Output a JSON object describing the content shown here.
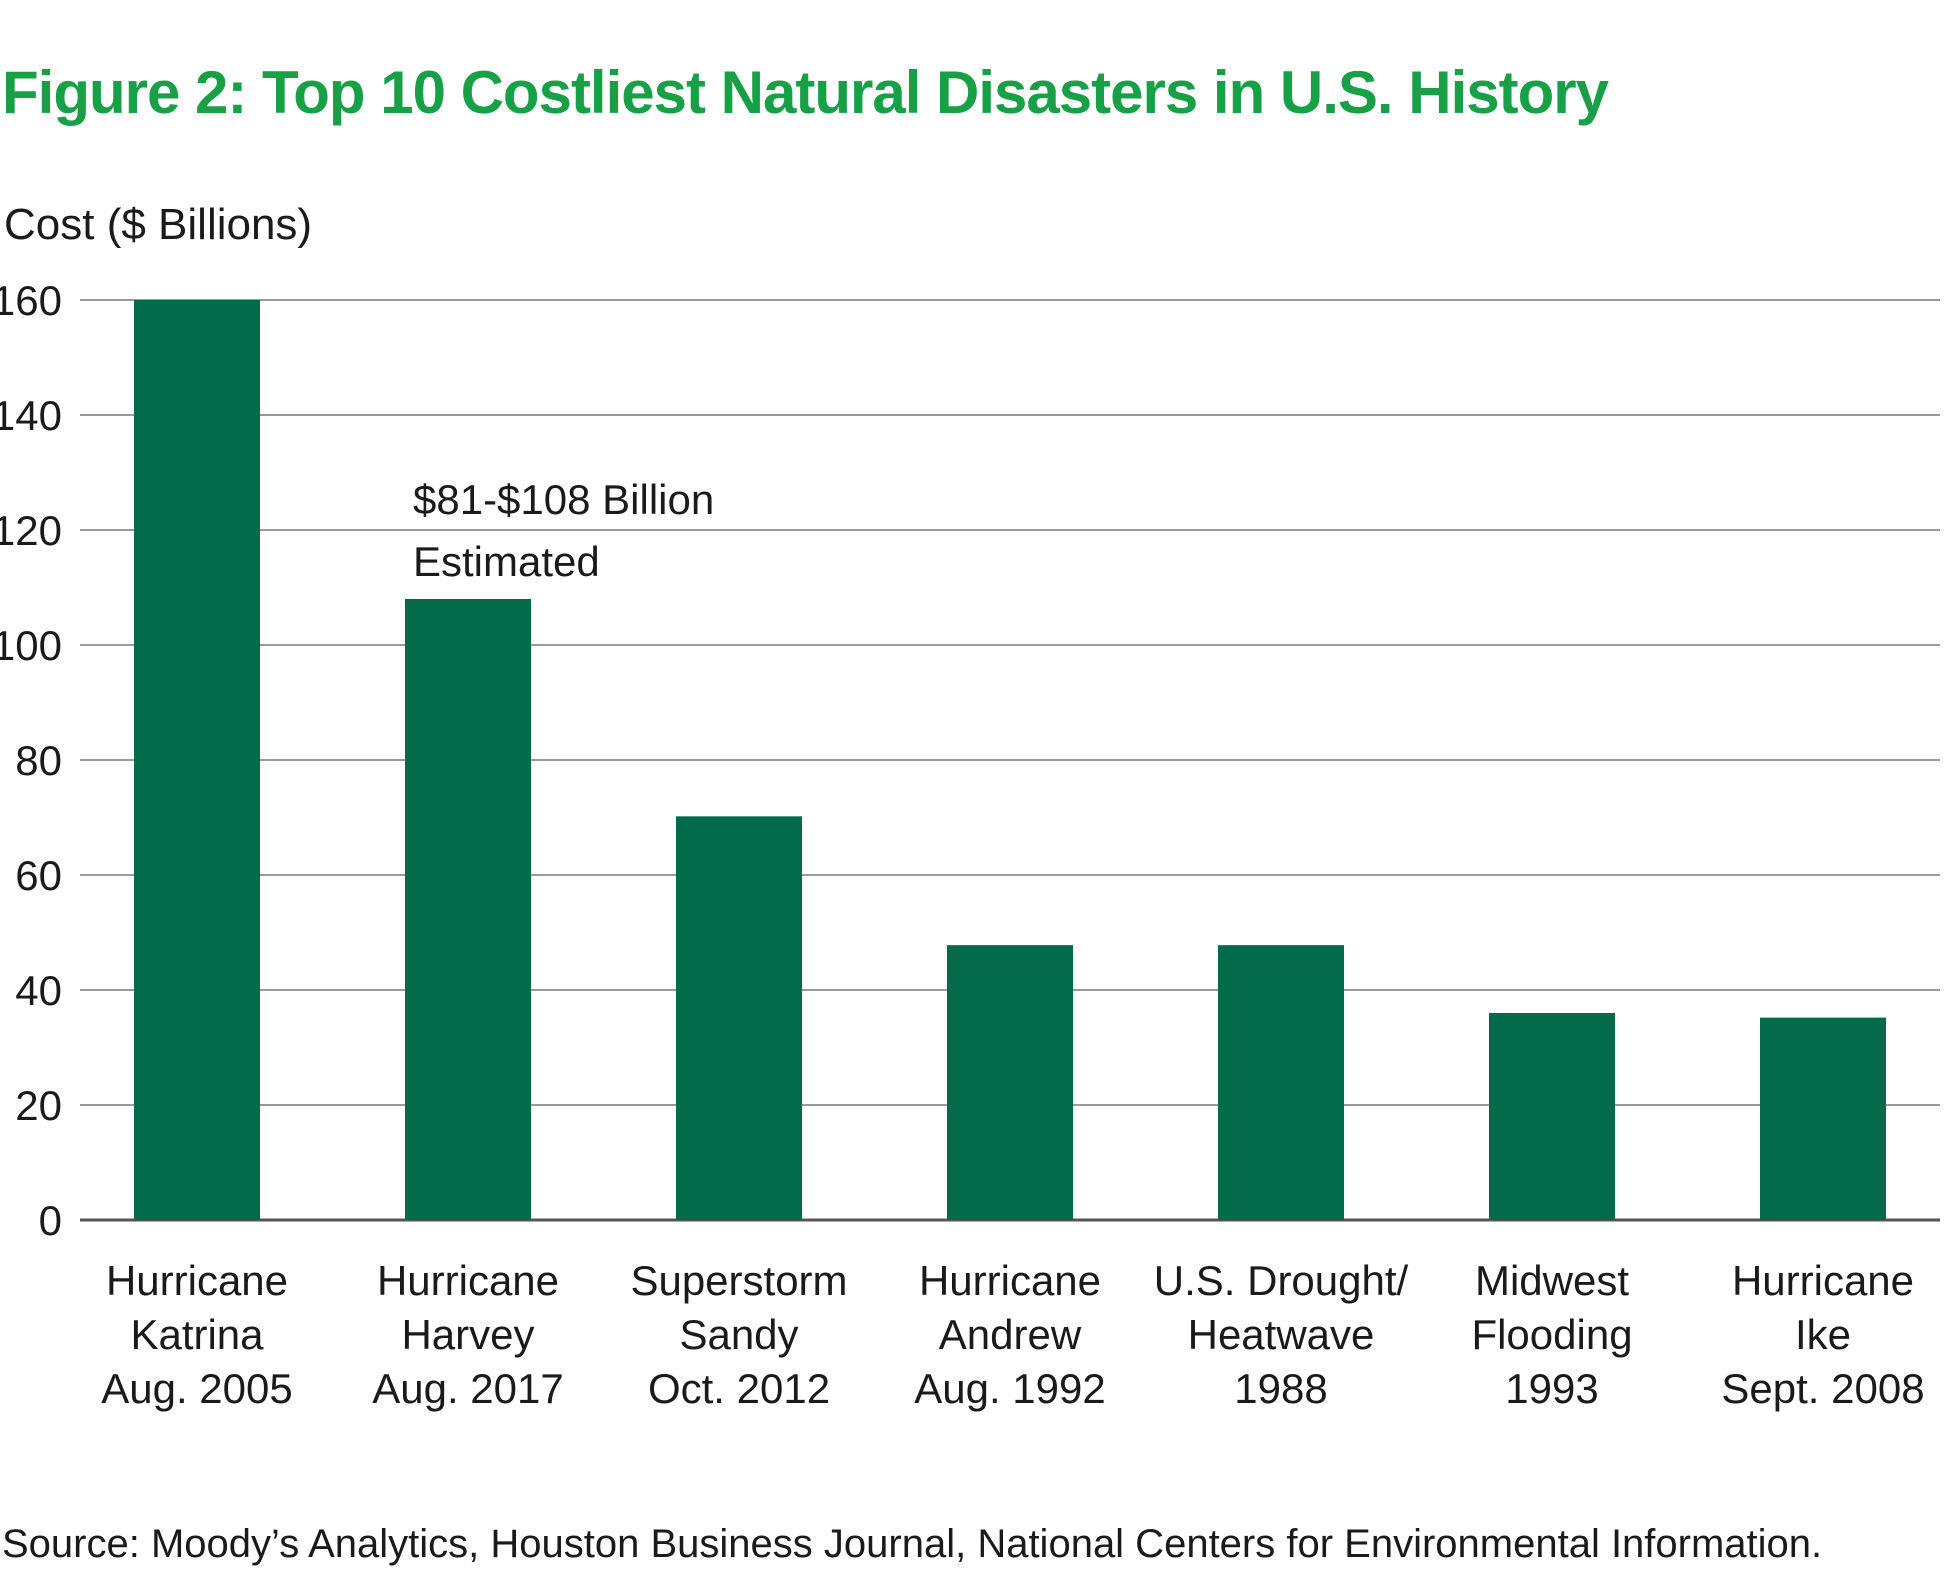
{
  "chart_data": {
    "type": "bar",
    "title": "Figure 2: Top 10 Costliest Natural Disasters in U.S. History",
    "ylabel": "Cost ($ Billions)",
    "xlabel": "",
    "ylim": [
      0,
      160
    ],
    "yticks": [
      0,
      20,
      40,
      60,
      80,
      100,
      120,
      140,
      160
    ],
    "grid": true,
    "categories": [
      [
        "Hurricane",
        "Katrina",
        "Aug. 2005"
      ],
      [
        "Hurricane",
        "Harvey",
        "Aug. 2017"
      ],
      [
        "Superstorm",
        "Sandy",
        "Oct. 2012"
      ],
      [
        "Hurricane",
        "Andrew",
        "Aug. 1992"
      ],
      [
        "U.S. Drought/",
        "Heatwave",
        "1988"
      ],
      [
        "Midwest",
        "Flooding",
        "1993"
      ],
      [
        "Hurricane",
        "Ike",
        "Sept. 2008"
      ]
    ],
    "values": [
      160,
      108,
      70.2,
      47.8,
      47.8,
      36,
      35.2
    ],
    "bar_color": "#036a4a",
    "annotations": [
      {
        "category_index": 1,
        "lines": [
          "$81-$108 Billion",
          "Estimated"
        ]
      }
    ]
  },
  "source": "Source: Moody’s Analytics, Houston Business Journal, National Centers for Environmental Information.",
  "colors": {
    "title": "#18a046",
    "grid": "#9a9a9a",
    "axis": "#555555"
  }
}
